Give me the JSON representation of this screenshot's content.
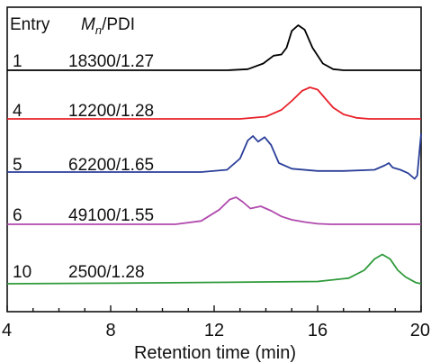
{
  "chart_data": {
    "type": "line",
    "xlabel": "Retention time (min)",
    "ylabel": "",
    "xlim": [
      4,
      20
    ],
    "xticks": [
      "4",
      "8",
      "12",
      "16",
      "20"
    ],
    "grid": false,
    "header": {
      "entry": "Entry",
      "mn_main": "M",
      "mn_sub": "n",
      "pdi": "/PDI"
    },
    "series": [
      {
        "entry": "1",
        "label": "18300/1.27",
        "color": "#000000",
        "x": [
          4,
          12.5,
          13.3,
          13.9,
          14.3,
          14.6,
          14.8,
          15.0,
          15.25,
          15.5,
          15.8,
          16.2,
          16.6,
          17.0,
          18,
          20
        ],
        "y": [
          0,
          0,
          0.01,
          0.06,
          0.13,
          0.14,
          0.2,
          0.35,
          0.4,
          0.36,
          0.2,
          0.06,
          0.01,
          0,
          0,
          0
        ]
      },
      {
        "entry": "4",
        "label": "12200/1.28",
        "color": "#e8212a",
        "x": [
          4,
          13,
          14.0,
          14.6,
          15.0,
          15.4,
          15.7,
          16.0,
          16.3,
          16.6,
          17.0,
          17.5,
          18,
          20
        ],
        "y": [
          0,
          0,
          0.02,
          0.08,
          0.16,
          0.25,
          0.28,
          0.26,
          0.18,
          0.1,
          0.04,
          0.01,
          0,
          0
        ]
      },
      {
        "entry": "5",
        "label": "62200/1.65",
        "color": "#2b3f99",
        "x": [
          4,
          11.5,
          12.5,
          13.0,
          13.3,
          13.5,
          13.7,
          13.95,
          14.2,
          14.5,
          15.0,
          16.0,
          17.0,
          18.2,
          18.6,
          18.75,
          18.9,
          19.2,
          19.5,
          19.75,
          19.85,
          19.95,
          20
        ],
        "y": [
          0,
          0,
          0.02,
          0.12,
          0.28,
          0.32,
          0.27,
          0.31,
          0.24,
          0.08,
          0.03,
          0.01,
          0.01,
          0.02,
          0.06,
          0.08,
          0.04,
          0.02,
          -0.01,
          -0.06,
          -0.03,
          0.22,
          0.34
        ]
      },
      {
        "entry": "6",
        "label": "49100/1.55",
        "color": "#b04aad",
        "x": [
          4,
          10.5,
          11.5,
          12.2,
          12.6,
          12.85,
          13.1,
          13.4,
          13.8,
          14.2,
          14.6,
          15.0,
          15.5,
          16.0,
          16.5,
          20
        ],
        "y": [
          0,
          0,
          0.03,
          0.13,
          0.22,
          0.24,
          0.2,
          0.14,
          0.16,
          0.12,
          0.07,
          0.04,
          0.02,
          0.005,
          0,
          0
        ]
      },
      {
        "entry": "10",
        "label": "2500/1.28",
        "color": "#2f9a3a",
        "x": [
          4,
          8,
          12,
          16,
          17.2,
          17.8,
          18.2,
          18.5,
          18.8,
          19.1,
          19.4,
          19.8,
          20
        ],
        "y": [
          0,
          0.005,
          0.012,
          0.02,
          0.05,
          0.12,
          0.22,
          0.26,
          0.22,
          0.12,
          0.06,
          0.01,
          0
        ]
      }
    ]
  }
}
